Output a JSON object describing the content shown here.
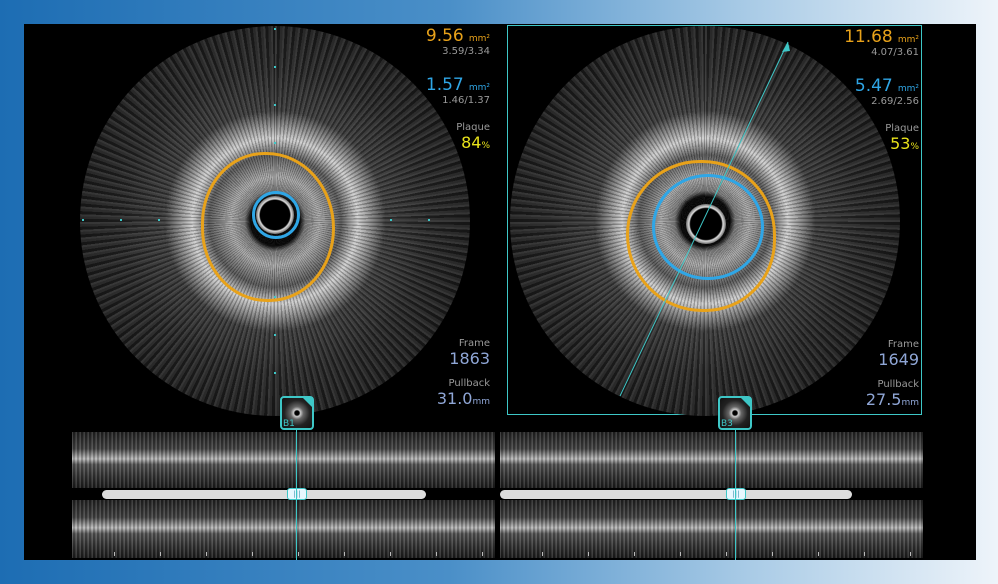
{
  "colors": {
    "eem": "#e8a21a",
    "lumen": "#2fa6e6",
    "plaque": "#e8e21a",
    "accent": "#3ec7c7",
    "frame": "#8fa6d6"
  },
  "left": {
    "eem_area": "9.56",
    "eem_unit": "mm²",
    "eem_diameters": "3.59/3.34",
    "lumen_area": "1.57",
    "lumen_unit": "mm²",
    "lumen_diameters": "1.46/1.37",
    "plaque_label": "Plaque",
    "plaque_value": "84",
    "plaque_unit": "%",
    "frame_label": "Frame",
    "frame_value": "1863",
    "pullback_label": "Pullback",
    "pullback_value": "31.0",
    "pullback_unit": "mm",
    "bookmark": "B1",
    "bookmark_icon": "ivus-thumbnail-icon"
  },
  "right": {
    "eem_area": "11.68",
    "eem_unit": "mm²",
    "eem_diameters": "4.07/3.61",
    "lumen_area": "5.47",
    "lumen_unit": "mm²",
    "lumen_diameters": "2.69/2.56",
    "plaque_label": "Plaque",
    "plaque_value": "53",
    "plaque_unit": "%",
    "frame_label": "Frame",
    "frame_value": "1649",
    "pullback_label": "Pullback",
    "pullback_value": "27.5",
    "pullback_unit": "mm",
    "bookmark": "B3",
    "bookmark_icon": "ivus-thumbnail-icon"
  }
}
